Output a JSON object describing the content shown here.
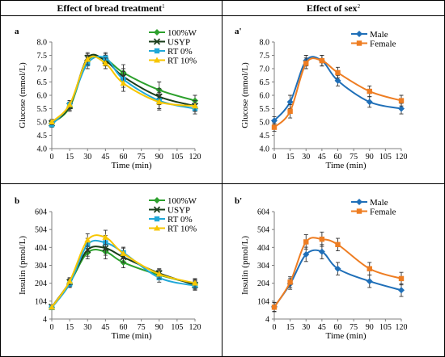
{
  "headers": {
    "left": "Effect of bread treatment",
    "left_sup": "1",
    "right": "Effect of sex",
    "right_sup": "2"
  },
  "colors": {
    "100%W": "#2ca02c",
    "USYP": "#1a3d1a",
    "RT 0%": "#20a8d8",
    "RT 10%": "#f7c600",
    "Male": "#1f6fb8",
    "Female": "#ee7d22"
  },
  "chart_data": [
    {
      "type": "line",
      "panel_label": "a",
      "xlabel": "Time (min)",
      "ylabel": "Glucose (mmol/L)",
      "x": [
        0,
        15,
        30,
        45,
        60,
        90,
        120
      ],
      "xticks": [
        0,
        15,
        30,
        45,
        60,
        75,
        90,
        105,
        120
      ],
      "ylim": [
        4.0,
        8.0
      ],
      "yticks": [
        "4.0",
        "4.5",
        "5.0",
        "5.5",
        "6.0",
        "6.5",
        "7.0",
        "7.5",
        "8.0"
      ],
      "legend_position": "top-right",
      "series": [
        {
          "name": "100%W",
          "marker": "diamond",
          "values": [
            4.95,
            5.55,
            7.3,
            7.35,
            6.85,
            6.2,
            5.8
          ],
          "err": [
            0.1,
            0.15,
            0.2,
            0.2,
            0.3,
            0.3,
            0.2
          ]
        },
        {
          "name": "USYP",
          "marker": "x",
          "values": [
            4.95,
            5.6,
            7.4,
            7.3,
            6.7,
            5.95,
            5.6
          ],
          "err": [
            0.1,
            0.15,
            0.2,
            0.2,
            0.3,
            0.3,
            0.2
          ]
        },
        {
          "name": "RT 0%",
          "marker": "square",
          "values": [
            4.9,
            5.65,
            7.2,
            7.4,
            6.6,
            5.8,
            5.5
          ],
          "err": [
            0.1,
            0.15,
            0.2,
            0.2,
            0.3,
            0.3,
            0.2
          ]
        },
        {
          "name": "RT 10%",
          "marker": "triangle",
          "values": [
            5.0,
            5.65,
            7.35,
            7.2,
            6.45,
            5.75,
            5.6
          ],
          "err": [
            0.1,
            0.15,
            0.2,
            0.2,
            0.3,
            0.3,
            0.2
          ]
        }
      ]
    },
    {
      "type": "line",
      "panel_label": "a'",
      "xlabel": "Time (min)",
      "ylabel": "Glucose (mmol/L)",
      "x": [
        0,
        15,
        30,
        45,
        60,
        90,
        120
      ],
      "xticks": [
        0,
        15,
        30,
        45,
        60,
        75,
        90,
        105,
        120
      ],
      "ylim": [
        4.0,
        8.0
      ],
      "yticks": [
        "4.0",
        "4.5",
        "5.0",
        "5.5",
        "6.0",
        "6.5",
        "7.0",
        "7.5",
        "8.0"
      ],
      "legend_position": "top-right",
      "series": [
        {
          "name": "Male",
          "marker": "diamond",
          "values": [
            5.05,
            5.75,
            7.3,
            7.3,
            6.55,
            5.75,
            5.5
          ],
          "err": [
            0.15,
            0.25,
            0.2,
            0.2,
            0.2,
            0.2,
            0.2
          ]
        },
        {
          "name": "Female",
          "marker": "square",
          "values": [
            4.8,
            5.4,
            7.2,
            7.3,
            6.85,
            6.15,
            5.8
          ],
          "err": [
            0.15,
            0.25,
            0.2,
            0.2,
            0.2,
            0.2,
            0.2
          ]
        }
      ]
    },
    {
      "type": "line",
      "panel_label": "b",
      "xlabel": "Time (min)",
      "ylabel": "Insulin (pmol/L)",
      "x": [
        0,
        15,
        30,
        45,
        60,
        90,
        120
      ],
      "xticks": [
        0,
        15,
        30,
        45,
        60,
        75,
        90,
        105,
        120
      ],
      "ylim": [
        4,
        604
      ],
      "yticks": [
        "4",
        "104",
        "204",
        "304",
        "404",
        "504",
        "604"
      ],
      "legend_position": "top-right",
      "series": [
        {
          "name": "100%W",
          "marker": "diamond",
          "values": [
            70,
            205,
            375,
            380,
            320,
            250,
            200
          ],
          "err": [
            12,
            20,
            35,
            40,
            30,
            25,
            25
          ]
        },
        {
          "name": "USYP",
          "marker": "x",
          "values": [
            72,
            210,
            390,
            400,
            350,
            260,
            195
          ],
          "err": [
            12,
            20,
            35,
            40,
            30,
            25,
            25
          ]
        },
        {
          "name": "RT 0%",
          "marker": "square",
          "values": [
            68,
            200,
            420,
            430,
            375,
            235,
            190
          ],
          "err": [
            12,
            20,
            35,
            40,
            30,
            25,
            25
          ]
        },
        {
          "name": "RT 10%",
          "marker": "triangle",
          "values": [
            70,
            215,
            445,
            460,
            370,
            255,
            205
          ],
          "err": [
            12,
            20,
            35,
            40,
            30,
            25,
            25
          ]
        }
      ]
    },
    {
      "type": "line",
      "panel_label": "b'",
      "xlabel": "Time (min)",
      "ylabel": "Insulin (pmol/L)",
      "x": [
        0,
        15,
        30,
        45,
        60,
        90,
        120
      ],
      "xticks": [
        0,
        15,
        30,
        45,
        60,
        75,
        90,
        105,
        120
      ],
      "ylim": [
        4,
        604
      ],
      "yticks": [
        "4",
        "104",
        "204",
        "304",
        "404",
        "504",
        "604"
      ],
      "legend_position": "top-right",
      "series": [
        {
          "name": "Male",
          "marker": "diamond",
          "values": [
            72,
            200,
            365,
            380,
            285,
            215,
            165
          ],
          "err": [
            25,
            30,
            40,
            40,
            35,
            35,
            35
          ]
        },
        {
          "name": "Female",
          "marker": "square",
          "values": [
            70,
            210,
            435,
            450,
            420,
            285,
            230
          ],
          "err": [
            25,
            30,
            40,
            40,
            35,
            35,
            35
          ]
        }
      ]
    }
  ]
}
